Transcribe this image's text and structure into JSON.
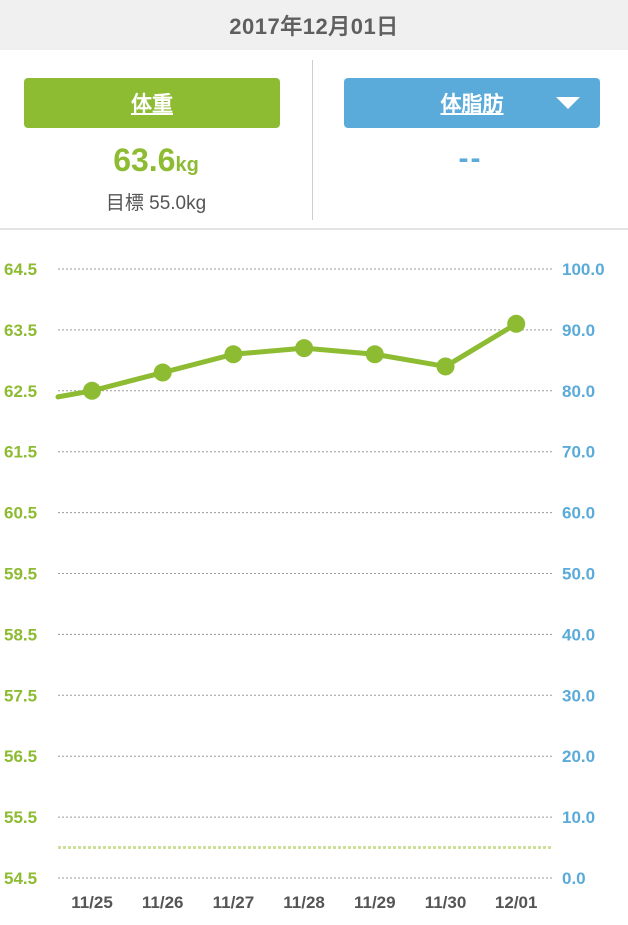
{
  "date": "2017年12月01日",
  "weight": {
    "button_label": "体重",
    "value": "63.6",
    "unit": "kg",
    "target_label": "目標",
    "target_value": "55.0kg"
  },
  "body_fat": {
    "button_label": "体脂肪",
    "value": "--",
    "dropdown_icon": "triangle-down-icon"
  },
  "colors": {
    "weight": "#8dbb32",
    "body_fat": "#5aabd9",
    "target_line": "#cde09a"
  },
  "chart_data": {
    "type": "line",
    "categories": [
      "11/25",
      "11/26",
      "11/27",
      "11/28",
      "11/29",
      "11/30",
      "12/01"
    ],
    "series": [
      {
        "values": [
          62.5,
          62.8,
          63.1,
          63.2,
          63.1,
          62.9,
          63.6
        ]
      }
    ],
    "line_start_value": 62.4,
    "target_value": 55.0,
    "y_left": {
      "ticks": [
        "64.5",
        "63.5",
        "62.5",
        "61.5",
        "60.5",
        "59.5",
        "58.5",
        "57.5",
        "56.5",
        "55.5",
        "54.5"
      ],
      "ylim": [
        54.5,
        64.5
      ]
    },
    "y_right": {
      "ticks": [
        "100.0",
        "90.0",
        "80.0",
        "70.0",
        "60.0",
        "50.0",
        "40.0",
        "30.0",
        "20.0",
        "10.0",
        "0.0"
      ],
      "ylim": [
        0,
        100
      ]
    },
    "grid": true
  }
}
